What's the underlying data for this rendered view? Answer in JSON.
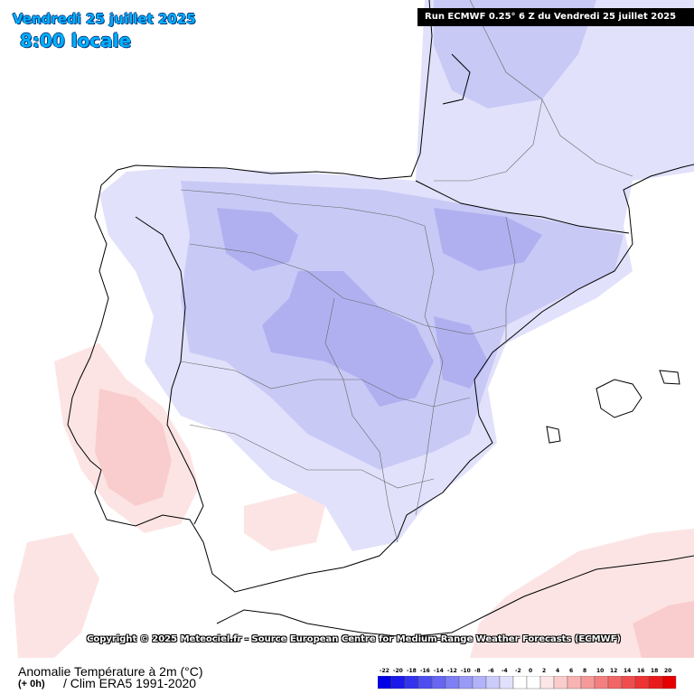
{
  "header": {
    "date_line": "Vendredi 25 juillet 2025",
    "time_line": "8:00 locale",
    "run_info": "Run ECMWF 0.25° 6 Z du Vendredi 25 juillet 2025"
  },
  "copyright": "Copyright © 2025 Meteociel.fr - Source European Centre for Medium-Range Weather Forecasts (ECMWF)",
  "footer": {
    "variable_title": "Anomalie Température à 2m (°C)",
    "offset": "(+ 0h)",
    "climatology": "/ Clim ERA5 1991-2020"
  },
  "legend": {
    "ticks": [
      "-22",
      "-20",
      "-18",
      "-16",
      "-14",
      "-12",
      "-10",
      "-8",
      "-6",
      "-4",
      "-2",
      "0",
      "2",
      "4",
      "6",
      "8",
      "10",
      "12",
      "14",
      "16",
      "18",
      "20"
    ],
    "colors": [
      "#0000e6",
      "#1a1aea",
      "#3333ee",
      "#4d4df0",
      "#6666f2",
      "#7f7ff4",
      "#9999f6",
      "#b2b2f8",
      "#ccccfa",
      "#e1e1fc",
      "#ffffff",
      "#ffffff",
      "#fde6e6",
      "#fbcccc",
      "#f9b3b3",
      "#f69999",
      "#f47f7f",
      "#f26666",
      "#ef4d4d",
      "#ed3333",
      "#ea1a1a",
      "#e60000"
    ]
  },
  "map": {
    "colors": {
      "land_line": "#000000",
      "cold_light": "#e1e1fb",
      "cold_mid": "#c9c9f6",
      "cold_strong": "#b0b0f1",
      "warm_light": "#fde4e4",
      "warm_mid": "#f9cdcd",
      "warm_strong": "#f4b6b6"
    },
    "region_labels": []
  }
}
